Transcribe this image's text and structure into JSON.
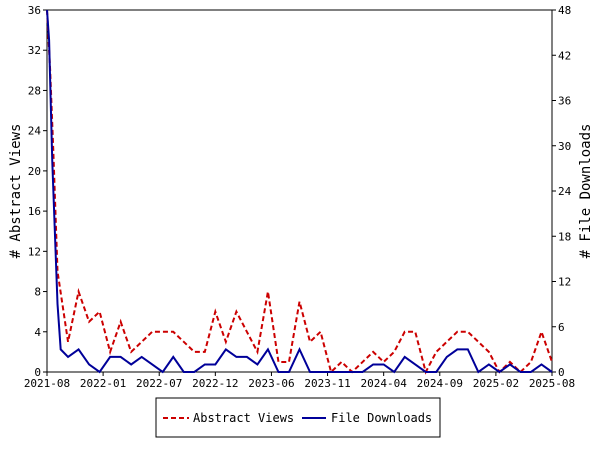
{
  "chart_data": {
    "type": "line",
    "x_tick_labels": [
      "2021-08",
      "2022-01",
      "2022-07",
      "2022-12",
      "2023-06",
      "2023-11",
      "2024-04",
      "2024-09",
      "2025-02",
      "2025-08"
    ],
    "left_axis": {
      "label": "# Abstract Views",
      "ylim": [
        0,
        36
      ],
      "ticks": [
        0,
        4,
        8,
        12,
        16,
        20,
        24,
        28,
        32,
        36
      ]
    },
    "right_axis": {
      "label": "# File Downloads",
      "ylim": [
        0,
        48
      ],
      "ticks": [
        0,
        6,
        12,
        18,
        24,
        30,
        36,
        42,
        48
      ]
    },
    "grid": false,
    "legend_position": "bottom-center",
    "months": 48,
    "series": [
      {
        "name": "Abstract Views",
        "axis": "left",
        "color": "#cc0000",
        "style": "dashed",
        "x": [
          0,
          0.3,
          0.6,
          1,
          2,
          3,
          4,
          5,
          6,
          7,
          8,
          9,
          10,
          11,
          12,
          13,
          14,
          15,
          16,
          17,
          18,
          19,
          20,
          21,
          22,
          23,
          24,
          25,
          26,
          27,
          28,
          29,
          30,
          31,
          32,
          33,
          34,
          35,
          36,
          37,
          38,
          39,
          40,
          41,
          42,
          43,
          44,
          45,
          46,
          47,
          48
        ],
        "values": [
          36,
          30,
          22,
          10,
          3,
          8,
          5,
          6,
          2,
          5,
          2,
          3,
          4,
          4,
          4,
          3,
          2,
          2,
          6,
          3,
          6,
          4,
          2,
          8,
          1,
          1,
          7,
          3,
          4,
          0,
          1,
          0,
          1,
          2,
          1,
          2,
          4,
          4,
          0,
          2,
          3,
          4,
          4,
          3,
          2,
          0,
          1,
          0,
          1,
          4,
          1
        ]
      },
      {
        "name": "File Downloads",
        "axis": "right",
        "color": "#000099",
        "style": "solid",
        "x": [
          0,
          0.2,
          0.5,
          1,
          1.3,
          2,
          3,
          4,
          5,
          6,
          7,
          8,
          9,
          10,
          11,
          12,
          13,
          14,
          15,
          16,
          17,
          18,
          19,
          20,
          21,
          22,
          23,
          24,
          25,
          26,
          27,
          28,
          29,
          30,
          31,
          32,
          33,
          34,
          35,
          36,
          37,
          38,
          39,
          40,
          41,
          42,
          43,
          44,
          45,
          46,
          47,
          48
        ],
        "values": [
          48,
          44,
          28,
          9,
          3,
          2,
          3,
          1,
          0,
          2,
          2,
          1,
          2,
          1,
          0,
          2,
          0,
          0,
          1,
          1,
          3,
          2,
          2,
          1,
          3,
          0,
          0,
          3,
          0,
          0,
          0,
          0,
          0,
          0,
          1,
          1,
          0,
          2,
          1,
          0,
          0,
          2,
          3,
          3,
          0,
          1,
          0,
          1,
          0,
          0,
          1,
          0
        ]
      }
    ]
  }
}
